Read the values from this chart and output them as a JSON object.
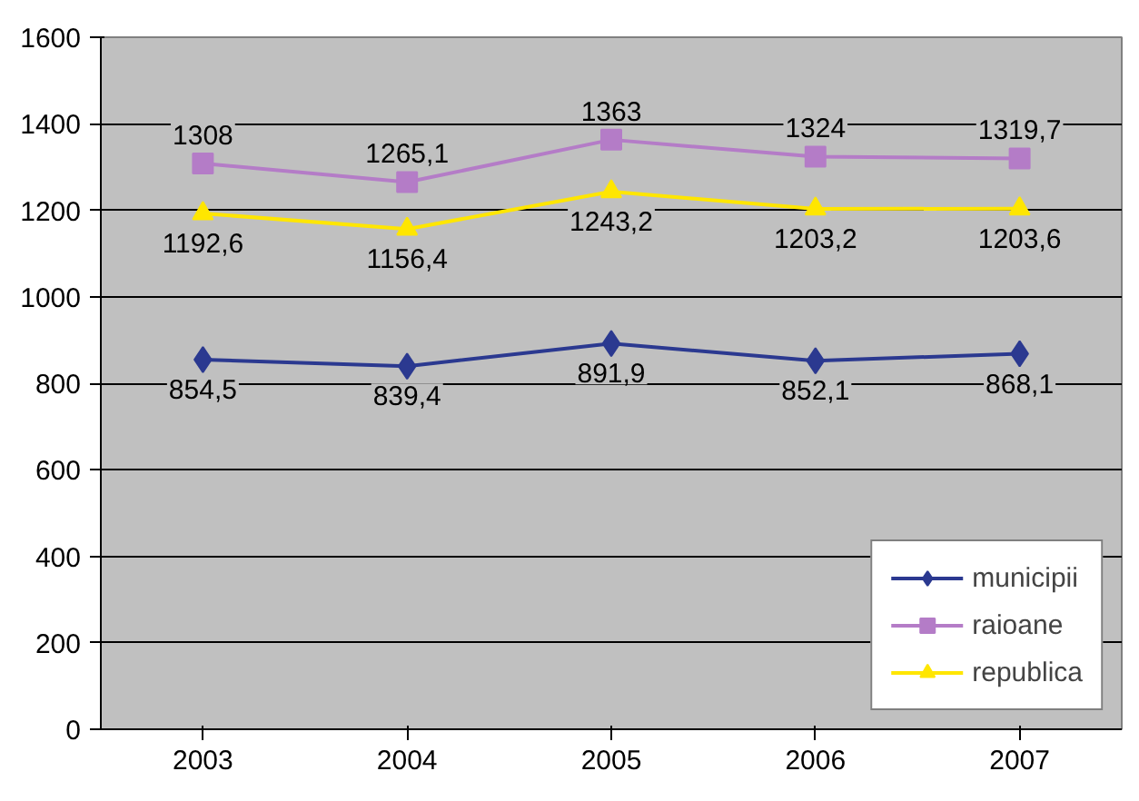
{
  "chart_data": {
    "type": "line",
    "categories": [
      "2003",
      "2004",
      "2005",
      "2006",
      "2007"
    ],
    "series": [
      {
        "name": "municipii",
        "color": "#2b3990",
        "marker": "diamond",
        "values": [
          854.5,
          839.4,
          891.9,
          852.1,
          868.1
        ],
        "value_labels": [
          "854,5",
          "839,4",
          "891,9",
          "852,1",
          "868,1"
        ]
      },
      {
        "name": "raioane",
        "color": "#b47cc7",
        "marker": "square",
        "values": [
          1308,
          1265.1,
          1363,
          1324,
          1319.7
        ],
        "value_labels": [
          "1308",
          "1265,1",
          "1363",
          "1324",
          "1319,7"
        ]
      },
      {
        "name": "republica",
        "color": "#ffe600",
        "marker": "triangle",
        "values": [
          1192.6,
          1156.4,
          1243.2,
          1203.2,
          1203.6
        ],
        "value_labels": [
          "1192,6",
          "1156,4",
          "1243,2",
          "1203,2",
          "1203,6"
        ]
      }
    ],
    "ylim": [
      0,
      1600
    ],
    "yticks": [
      0,
      200,
      400,
      600,
      800,
      1000,
      1200,
      1400,
      1600
    ],
    "grid": "y",
    "legend": "bottom right"
  }
}
